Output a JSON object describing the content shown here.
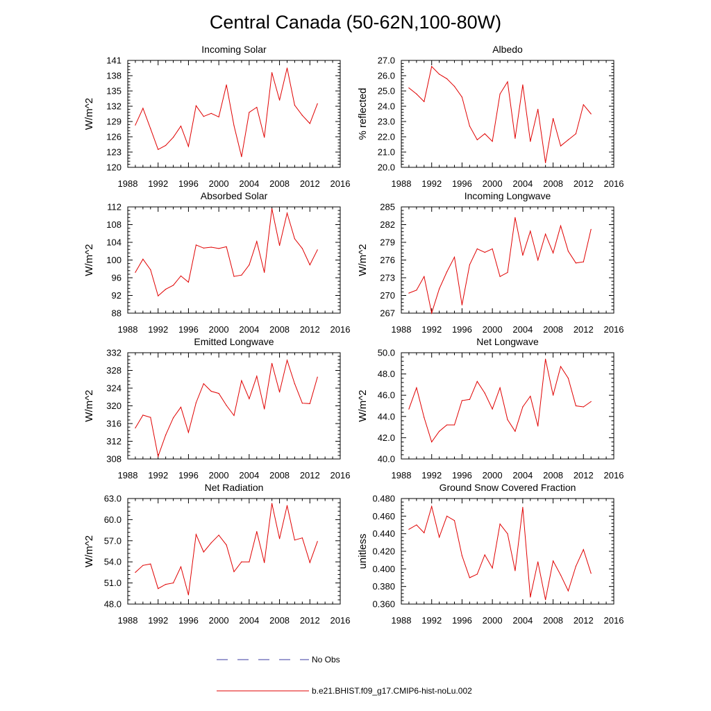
{
  "figure": {
    "title": "Central Canada (50-62N,100-80W)",
    "legend": [
      {
        "label": "No Obs",
        "color": "#3a3aa0",
        "style": "dashed"
      },
      {
        "label": "b.e21.BHIST.f09_g17.CMIP6-hist-noLu.002",
        "color": "#e00000",
        "style": "solid"
      }
    ]
  },
  "chart_data": [
    {
      "type": "line",
      "title": "Incoming Solar",
      "ylabel": "W/m^2",
      "xlim": [
        1988,
        2016
      ],
      "xticks": [
        "1988",
        "1992",
        "1996",
        "2000",
        "2004",
        "2008",
        "2012",
        "2016"
      ],
      "ylim": [
        120,
        141
      ],
      "yticks": [
        "120",
        "123",
        "126",
        "129",
        "132",
        "135",
        "138",
        "141"
      ],
      "series": [
        {
          "color": "#e00000",
          "x": [
            1989,
            1990,
            1991,
            1992,
            1993,
            1994,
            1995,
            1996,
            1997,
            1998,
            1999,
            2000,
            2001,
            2002,
            2003,
            2004,
            2005,
            2006,
            2007,
            2008,
            2009,
            2010,
            2011,
            2012,
            2013
          ],
          "y": [
            128.3,
            131.6,
            127.6,
            123.5,
            124.3,
            125.9,
            128.1,
            124.1,
            132.1,
            130.0,
            130.6,
            129.9,
            136.2,
            128.2,
            122.1,
            130.8,
            131.8,
            125.9,
            138.6,
            133.2,
            139.5,
            132.2,
            130.2,
            128.6,
            132.5
          ]
        }
      ]
    },
    {
      "type": "line",
      "title": "Albedo",
      "ylabel": "% reflected",
      "xlim": [
        1988,
        2016
      ],
      "xticks": [
        "1988",
        "1992",
        "1996",
        "2000",
        "2004",
        "2008",
        "2012",
        "2016"
      ],
      "ylim": [
        20,
        27
      ],
      "yticks": [
        "20.0",
        "21.0",
        "22.0",
        "23.0",
        "24.0",
        "25.0",
        "26.0",
        "27.0"
      ],
      "series": [
        {
          "color": "#e00000",
          "x": [
            1989,
            1990,
            1991,
            1992,
            1993,
            1994,
            1995,
            1996,
            1997,
            1998,
            1999,
            2000,
            2001,
            2002,
            2003,
            2004,
            2005,
            2006,
            2007,
            2008,
            2009,
            2010,
            2011,
            2012,
            2013
          ],
          "y": [
            25.2,
            24.8,
            24.3,
            26.6,
            26.1,
            25.8,
            25.3,
            24.6,
            22.7,
            21.8,
            22.2,
            21.7,
            24.8,
            25.6,
            21.9,
            25.4,
            21.7,
            23.8,
            20.3,
            23.2,
            21.4,
            21.8,
            22.2,
            24.1,
            23.5
          ]
        }
      ]
    },
    {
      "type": "line",
      "title": "Absorbed Solar",
      "ylabel": "W/m^2",
      "xlim": [
        1988,
        2016
      ],
      "xticks": [
        "1988",
        "1992",
        "1996",
        "2000",
        "2004",
        "2008",
        "2012",
        "2016"
      ],
      "ylim": [
        88,
        112
      ],
      "yticks": [
        "88",
        "92",
        "96",
        "100",
        "104",
        "108",
        "112"
      ],
      "series": [
        {
          "color": "#e00000",
          "x": [
            1989,
            1990,
            1991,
            1992,
            1993,
            1994,
            1995,
            1996,
            1997,
            1998,
            1999,
            2000,
            2001,
            2002,
            2003,
            2004,
            2005,
            2006,
            2007,
            2008,
            2009,
            2010,
            2011,
            2012,
            2013
          ],
          "y": [
            97.2,
            100.2,
            97.8,
            91.9,
            93.4,
            94.3,
            96.4,
            95.0,
            103.4,
            102.7,
            102.9,
            102.6,
            103.0,
            96.3,
            96.6,
            98.9,
            104.2,
            97.2,
            111.6,
            103.3,
            110.6,
            104.8,
            102.6,
            98.9,
            102.3
          ]
        }
      ]
    },
    {
      "type": "line",
      "title": "Incoming Longwave",
      "ylabel": "W/m^2",
      "xlim": [
        1988,
        2016
      ],
      "xticks": [
        "1988",
        "1992",
        "1996",
        "2000",
        "2004",
        "2008",
        "2012",
        "2016"
      ],
      "ylim": [
        267,
        285
      ],
      "yticks": [
        "267",
        "270",
        "273",
        "276",
        "279",
        "282",
        "285"
      ],
      "series": [
        {
          "color": "#e00000",
          "x": [
            1989,
            1990,
            1991,
            1992,
            1993,
            1994,
            1995,
            1996,
            1997,
            1998,
            1999,
            2000,
            2001,
            2002,
            2003,
            2004,
            2005,
            2006,
            2007,
            2008,
            2009,
            2010,
            2011,
            2012,
            2013
          ],
          "y": [
            270.4,
            270.9,
            273.2,
            267.0,
            271.1,
            274.0,
            276.5,
            268.4,
            275.2,
            277.9,
            277.3,
            277.9,
            273.2,
            273.9,
            283.2,
            276.8,
            280.9,
            276.0,
            280.4,
            277.2,
            281.8,
            277.5,
            275.5,
            275.7,
            281.2
          ]
        }
      ]
    },
    {
      "type": "line",
      "title": "Emitted Longwave",
      "ylabel": "W/m^2",
      "xlim": [
        1988,
        2016
      ],
      "xticks": [
        "1988",
        "1992",
        "1996",
        "2000",
        "2004",
        "2008",
        "2012",
        "2016"
      ],
      "ylim": [
        308,
        332
      ],
      "yticks": [
        "308",
        "312",
        "316",
        "320",
        "324",
        "328",
        "332"
      ],
      "series": [
        {
          "color": "#e00000",
          "x": [
            1989,
            1990,
            1991,
            1992,
            1993,
            1994,
            1995,
            1996,
            1997,
            1998,
            1999,
            2000,
            2001,
            2002,
            2003,
            2004,
            2005,
            2006,
            2007,
            2008,
            2009,
            2010,
            2011,
            2012,
            2013
          ],
          "y": [
            315.0,
            317.9,
            317.4,
            308.6,
            313.4,
            317.3,
            319.7,
            314.0,
            320.7,
            325.0,
            323.3,
            322.8,
            320.1,
            317.8,
            325.7,
            321.6,
            326.7,
            319.3,
            329.6,
            323.1,
            330.3,
            325.0,
            320.6,
            320.5,
            326.5
          ]
        }
      ]
    },
    {
      "type": "line",
      "title": "Net Longwave",
      "ylabel": "W/m^2",
      "xlim": [
        1988,
        2016
      ],
      "xticks": [
        "1988",
        "1992",
        "1996",
        "2000",
        "2004",
        "2008",
        "2012",
        "2016"
      ],
      "ylim": [
        40,
        50
      ],
      "yticks": [
        "40.0",
        "42.0",
        "44.0",
        "46.0",
        "48.0",
        "50.0"
      ],
      "series": [
        {
          "color": "#e00000",
          "x": [
            1989,
            1990,
            1991,
            1992,
            1993,
            1994,
            1995,
            1996,
            1997,
            1998,
            1999,
            2000,
            2001,
            2002,
            2003,
            2004,
            2005,
            2006,
            2007,
            2008,
            2009,
            2010,
            2011,
            2012,
            2013
          ],
          "y": [
            44.7,
            46.7,
            43.9,
            41.6,
            42.6,
            43.2,
            43.2,
            45.5,
            45.6,
            47.3,
            46.2,
            44.7,
            46.7,
            43.7,
            42.6,
            44.9,
            45.9,
            43.1,
            49.4,
            46.0,
            48.7,
            47.6,
            45.0,
            44.9,
            45.4
          ]
        }
      ]
    },
    {
      "type": "line",
      "title": "Net Radiation",
      "ylabel": "W/m^2",
      "xlim": [
        1988,
        2016
      ],
      "xticks": [
        "1988",
        "1992",
        "1996",
        "2000",
        "2004",
        "2008",
        "2012",
        "2016"
      ],
      "ylim": [
        48,
        63
      ],
      "yticks": [
        "48.0",
        "51.0",
        "54.0",
        "57.0",
        "60.0",
        "63.0"
      ],
      "series": [
        {
          "color": "#e00000",
          "x": [
            1989,
            1990,
            1991,
            1992,
            1993,
            1994,
            1995,
            1996,
            1997,
            1998,
            1999,
            2000,
            2001,
            2002,
            2003,
            2004,
            2005,
            2006,
            2007,
            2008,
            2009,
            2010,
            2011,
            2012,
            2013
          ],
          "y": [
            52.5,
            53.5,
            53.7,
            50.2,
            50.8,
            51.0,
            53.3,
            49.3,
            57.9,
            55.4,
            56.7,
            57.8,
            56.4,
            52.6,
            54.0,
            54.0,
            58.3,
            53.9,
            62.3,
            57.3,
            62.0,
            57.1,
            57.4,
            53.9,
            56.9
          ]
        }
      ]
    },
    {
      "type": "line",
      "title": "Ground Snow Covered Fraction",
      "ylabel": "unitless",
      "xlim": [
        1988,
        2016
      ],
      "xticks": [
        "1988",
        "1992",
        "1996",
        "2000",
        "2004",
        "2008",
        "2012",
        "2016"
      ],
      "ylim": [
        0.36,
        0.48
      ],
      "yticks": [
        "0.360",
        "0.380",
        "0.400",
        "0.420",
        "0.440",
        "0.460",
        "0.480"
      ],
      "series": [
        {
          "color": "#e00000",
          "x": [
            1989,
            1990,
            1991,
            1992,
            1993,
            1994,
            1995,
            1996,
            1997,
            1998,
            1999,
            2000,
            2001,
            2002,
            2003,
            2004,
            2005,
            2006,
            2007,
            2008,
            2009,
            2010,
            2011,
            2012,
            2013
          ],
          "y": [
            0.445,
            0.45,
            0.441,
            0.471,
            0.436,
            0.46,
            0.455,
            0.415,
            0.39,
            0.394,
            0.416,
            0.401,
            0.451,
            0.44,
            0.398,
            0.47,
            0.368,
            0.408,
            0.365,
            0.409,
            0.393,
            0.375,
            0.403,
            0.422,
            0.395
          ]
        }
      ]
    }
  ]
}
